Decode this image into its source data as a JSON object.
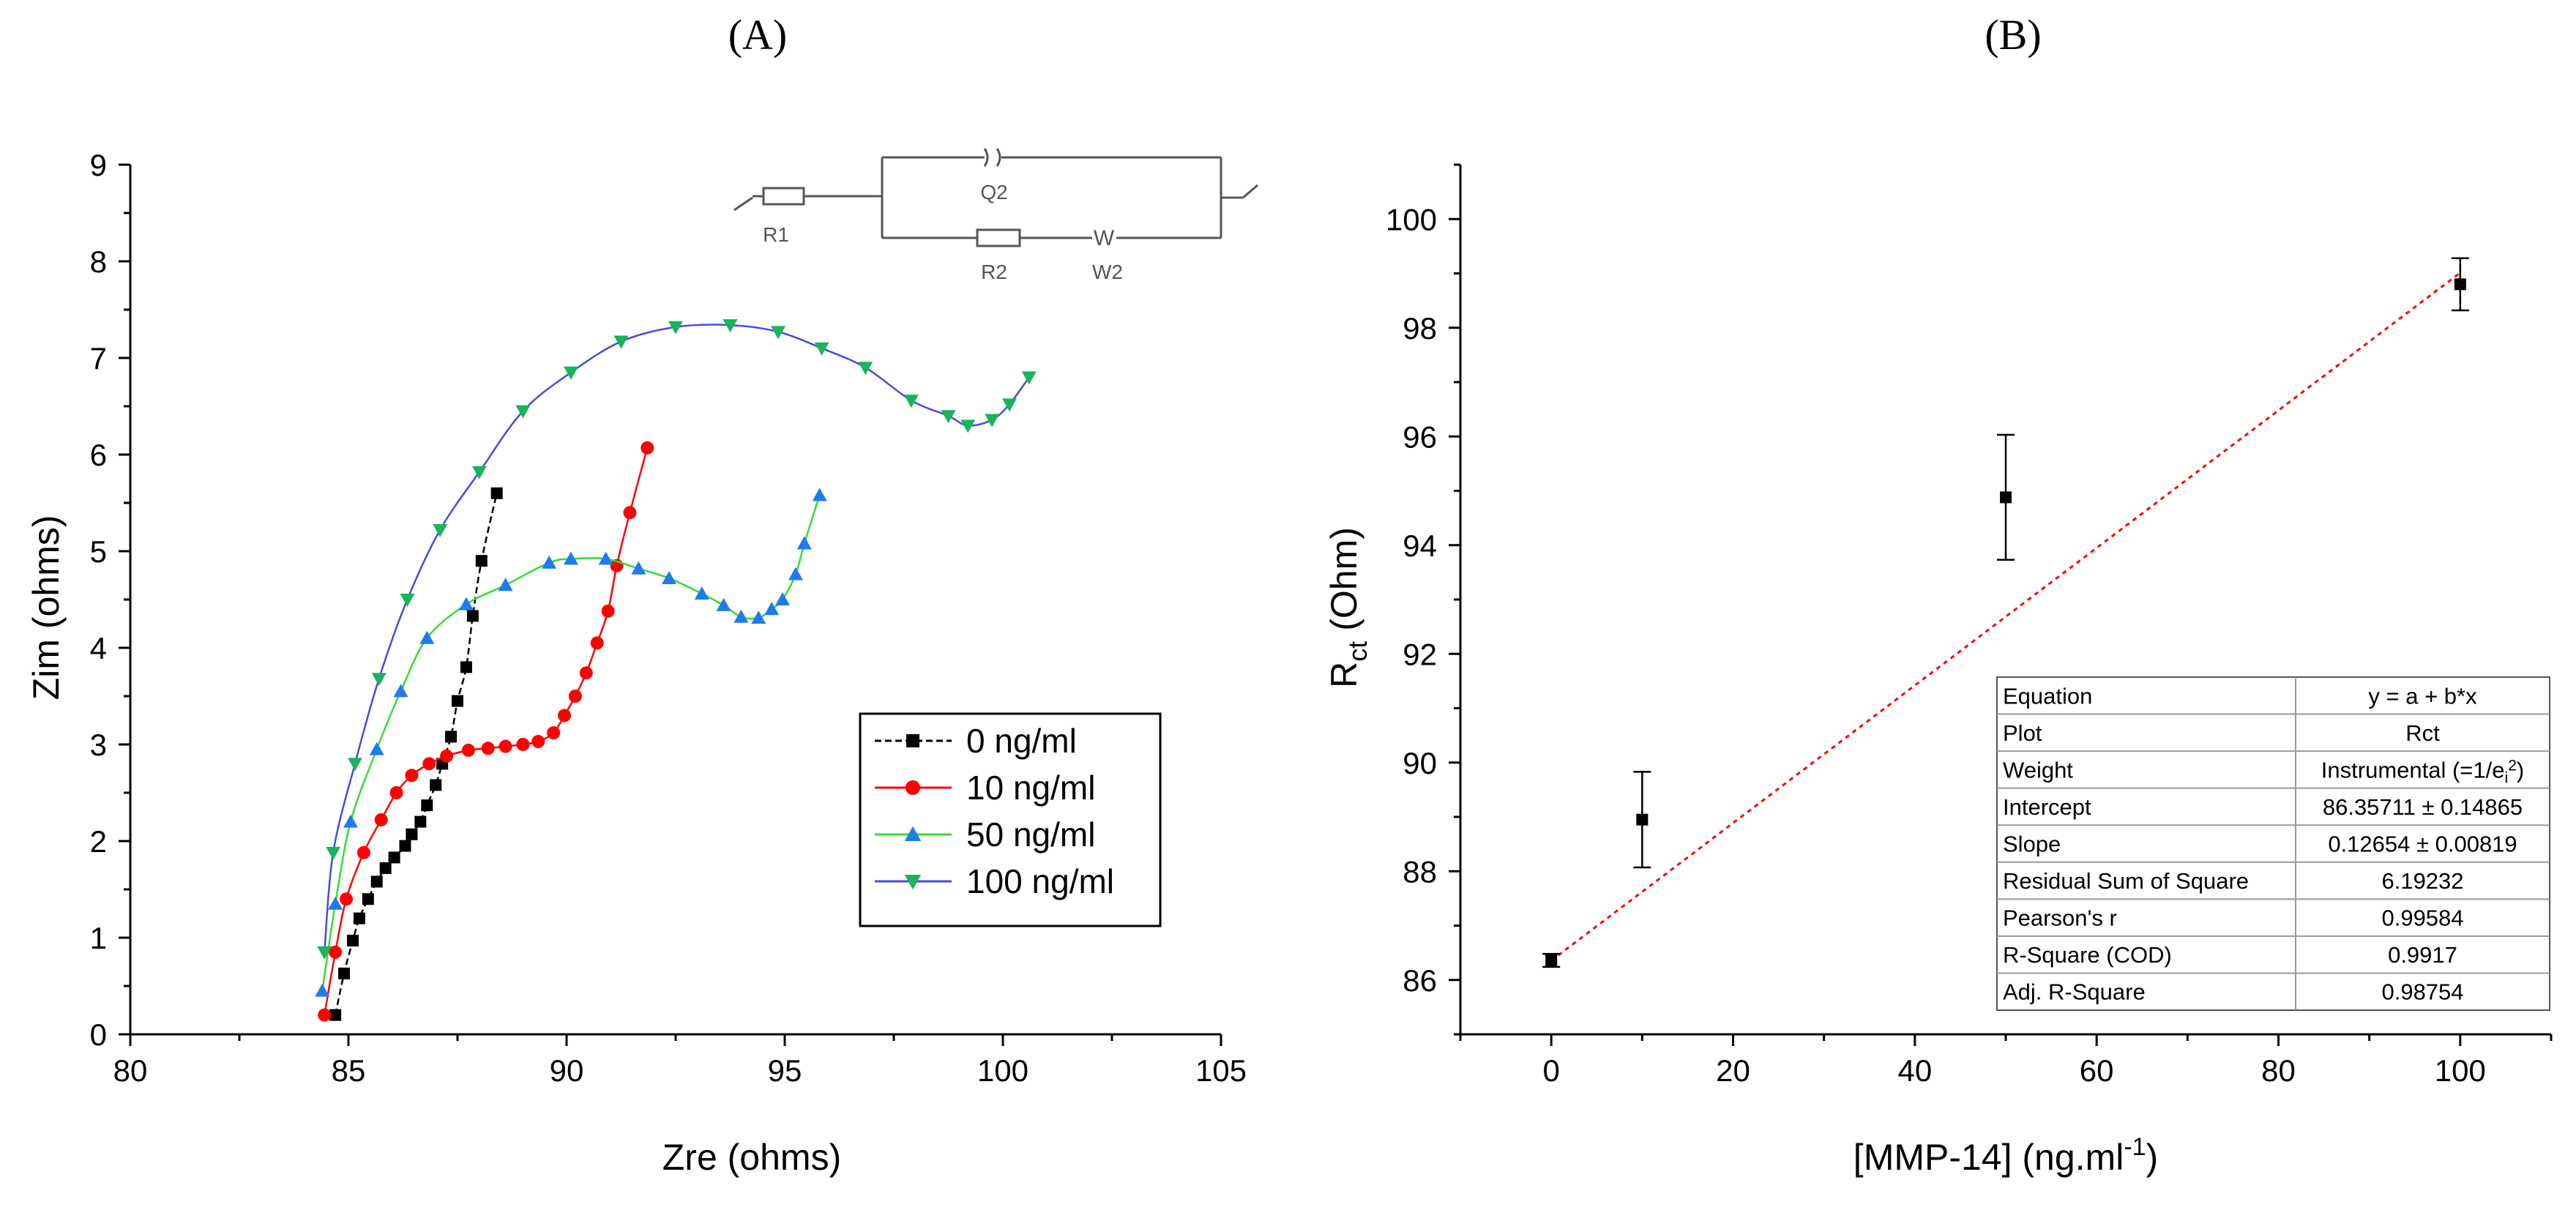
{
  "panels": {
    "a_label": "(A)",
    "b_label": "(B)"
  },
  "chart_data": [
    {
      "type": "scatter",
      "panel": "(A)",
      "xlabel": "Zre (ohms)",
      "ylabel": "Zim (ohms)",
      "xlim": [
        80,
        105
      ],
      "ylim": [
        0,
        9
      ],
      "xticks": [
        "80",
        "85",
        "90",
        "95",
        "100",
        "105"
      ],
      "yticks": [
        "0",
        "1",
        "2",
        "3",
        "4",
        "5",
        "6",
        "7",
        "8",
        "9"
      ],
      "legend_position": "center-right",
      "circuit": {
        "labels": [
          "R1",
          "Q2",
          "R2",
          "W2"
        ],
        "w_symbol": "W"
      },
      "series": [
        {
          "name": "0 ng/ml",
          "color": "#000000",
          "marker": "square",
          "points": [
            [
              84.7,
              0.2
            ],
            [
              84.9,
              0.63
            ],
            [
              85.1,
              0.97
            ],
            [
              85.25,
              1.2
            ],
            [
              85.45,
              1.4
            ],
            [
              85.65,
              1.58
            ],
            [
              85.85,
              1.72
            ],
            [
              86.05,
              1.83
            ],
            [
              86.3,
              1.95
            ],
            [
              86.45,
              2.07
            ],
            [
              86.65,
              2.2
            ],
            [
              86.8,
              2.37
            ],
            [
              87.0,
              2.58
            ],
            [
              87.15,
              2.8
            ],
            [
              87.35,
              3.08
            ],
            [
              87.5,
              3.45
            ],
            [
              87.7,
              3.8
            ],
            [
              87.85,
              4.33
            ],
            [
              88.05,
              4.9
            ],
            [
              88.4,
              5.6
            ]
          ]
        },
        {
          "name": "10 ng/ml",
          "color": "#ff0000",
          "marker": "circle",
          "points": [
            [
              84.45,
              0.2
            ],
            [
              84.7,
              0.85
            ],
            [
              84.95,
              1.4
            ],
            [
              85.35,
              1.88
            ],
            [
              85.75,
              2.22
            ],
            [
              86.1,
              2.5
            ],
            [
              86.45,
              2.68
            ],
            [
              86.85,
              2.8
            ],
            [
              87.25,
              2.88
            ],
            [
              87.75,
              2.94
            ],
            [
              88.2,
              2.96
            ],
            [
              88.6,
              2.98
            ],
            [
              89.0,
              3.0
            ],
            [
              89.35,
              3.03
            ],
            [
              89.7,
              3.12
            ],
            [
              89.95,
              3.3
            ],
            [
              90.2,
              3.5
            ],
            [
              90.45,
              3.74
            ],
            [
              90.7,
              4.05
            ],
            [
              90.95,
              4.38
            ],
            [
              91.15,
              4.85
            ],
            [
              91.45,
              5.4
            ],
            [
              91.85,
              6.07
            ]
          ]
        },
        {
          "name": "50 ng/ml",
          "color": "#00dd00",
          "marker": "triangle-up",
          "points": [
            [
              84.4,
              0.45
            ],
            [
              84.7,
              1.35
            ],
            [
              85.05,
              2.2
            ],
            [
              85.65,
              2.95
            ],
            [
              86.2,
              3.55
            ],
            [
              86.8,
              4.1
            ],
            [
              87.7,
              4.45
            ],
            [
              88.6,
              4.65
            ],
            [
              89.6,
              4.88
            ],
            [
              90.1,
              4.92
            ],
            [
              90.9,
              4.92
            ],
            [
              91.65,
              4.82
            ],
            [
              92.35,
              4.72
            ],
            [
              93.1,
              4.56
            ],
            [
              93.6,
              4.44
            ],
            [
              94.0,
              4.32
            ],
            [
              94.4,
              4.31
            ],
            [
              94.7,
              4.4
            ],
            [
              94.95,
              4.5
            ],
            [
              95.25,
              4.76
            ],
            [
              95.45,
              5.08
            ],
            [
              95.8,
              5.58
            ]
          ]
        },
        {
          "name": "100 ng/ml",
          "color": "#3a3acd",
          "marker": "triangle-down",
          "points": [
            [
              84.45,
              0.85
            ],
            [
              84.65,
              1.88
            ],
            [
              85.15,
              2.8
            ],
            [
              85.7,
              3.68
            ],
            [
              86.35,
              4.5
            ],
            [
              87.1,
              5.22
            ],
            [
              88.0,
              5.82
            ],
            [
              89.0,
              6.45
            ],
            [
              90.1,
              6.85
            ],
            [
              91.25,
              7.17
            ],
            [
              92.5,
              7.32
            ],
            [
              93.75,
              7.34
            ],
            [
              94.85,
              7.27
            ],
            [
              95.85,
              7.1
            ],
            [
              96.85,
              6.9
            ],
            [
              97.9,
              6.56
            ],
            [
              98.75,
              6.4
            ],
            [
              99.2,
              6.3
            ],
            [
              99.75,
              6.36
            ],
            [
              100.15,
              6.52
            ],
            [
              100.6,
              6.8
            ]
          ]
        }
      ]
    },
    {
      "type": "scatter",
      "panel": "(B)",
      "xlabel_text": "[MMP-14] (ng.ml",
      "xlabel_sup": "-1",
      "xlabel_end": ")",
      "ylabel_main": "R",
      "ylabel_sub": "ct",
      "ylabel_end": " (Ohm)",
      "xlim": [
        -10,
        110
      ],
      "ylim": [
        85,
        101
      ],
      "xticks": [
        "0",
        "20",
        "40",
        "60",
        "80",
        "100"
      ],
      "yticks": [
        "86",
        "88",
        "90",
        "92",
        "94",
        "96",
        "98",
        "100"
      ],
      "points": [
        {
          "x": 0,
          "y": 86.36,
          "err": 0.12
        },
        {
          "x": 10,
          "y": 88.95,
          "err": 0.88
        },
        {
          "x": 50,
          "y": 94.88,
          "err": 1.15
        },
        {
          "x": 100,
          "y": 98.8,
          "err": 0.48
        }
      ],
      "fit": {
        "intercept": 86.35711,
        "slope": 0.12654,
        "x_range": [
          0,
          100
        ],
        "color": "#ff0000"
      },
      "table": [
        [
          "Equation",
          "y = a + b*x"
        ],
        [
          "Plot",
          "Rct"
        ],
        [
          "Weight",
          "Instrumental (=1/e"
        ],
        [
          "Intercept",
          "86.35711 ± 0.14865"
        ],
        [
          "Slope",
          "0.12654 ± 0.00819"
        ],
        [
          "Residual Sum of Square",
          "6.19232"
        ],
        [
          "Pearson's r",
          "0.99584"
        ],
        [
          "R-Square (COD)",
          "0.9917"
        ],
        [
          "Adj. R-Square",
          "0.98754"
        ]
      ],
      "weight_sub": "i",
      "weight_sup": "2",
      "weight_end": ")"
    }
  ]
}
